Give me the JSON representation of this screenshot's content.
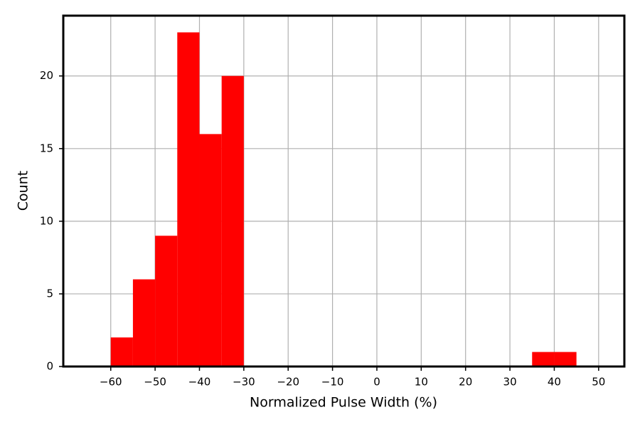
{
  "chart_data": {
    "type": "histogram",
    "xlabel": "Normalized Pulse Width (%)",
    "ylabel": "Count",
    "bins": [
      -60,
      -55,
      -50,
      -45,
      -40,
      -35,
      -30,
      -25,
      -20,
      -15,
      -10,
      -5,
      0,
      5,
      10,
      15,
      20,
      25,
      30,
      35,
      40,
      45
    ],
    "values": [
      2,
      6,
      9,
      23,
      16,
      20,
      0,
      0,
      0,
      0,
      0,
      0,
      0,
      0,
      0,
      0,
      0,
      0,
      0,
      1,
      1
    ],
    "color": "#ff0000",
    "xlim": [
      -70.7,
      55.8
    ],
    "xticks": [
      {
        "value": -60,
        "label": "−60"
      },
      {
        "value": -50,
        "label": "−50"
      },
      {
        "value": -40,
        "label": "−40"
      },
      {
        "value": -30,
        "label": "−30"
      },
      {
        "value": -20,
        "label": "−20"
      },
      {
        "value": -10,
        "label": "−10"
      },
      0,
      10,
      20,
      30,
      40,
      50
    ],
    "ylim": [
      0,
      24.15
    ],
    "yticks": [
      0,
      5,
      10,
      15,
      20
    ],
    "grid": true
  }
}
